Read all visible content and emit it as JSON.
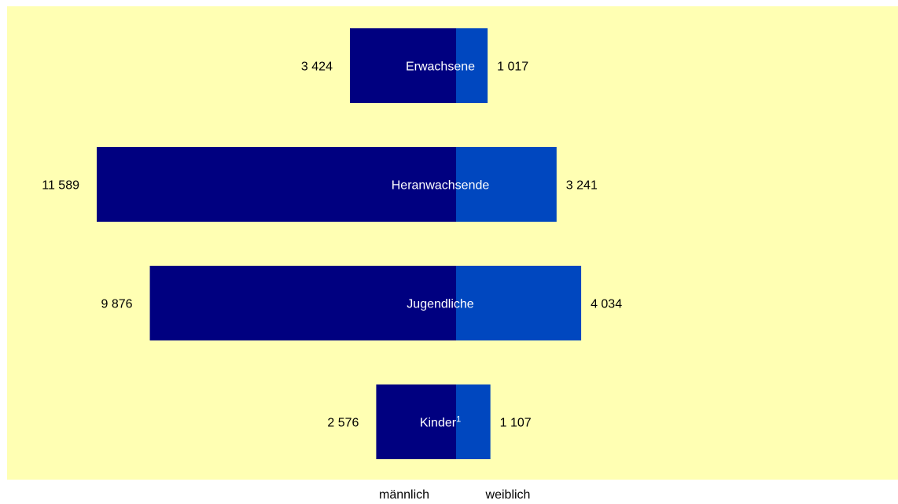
{
  "chart_data": {
    "type": "bar",
    "orientation": "horizontal",
    "layout": "population-pyramid",
    "categories": [
      "Erwachsene",
      "Heranwachsende",
      "Jugendliche",
      "Kinder"
    ],
    "category_footnotes": [
      "",
      "",
      "",
      "1"
    ],
    "series": [
      {
        "name": "männlich",
        "values": [
          3424,
          11589,
          9876,
          2576
        ],
        "labels": [
          "3 424",
          "11 589",
          "9 876",
          "2 576"
        ]
      },
      {
        "name": "weiblich",
        "values": [
          1017,
          3241,
          4034,
          1107
        ],
        "labels": [
          "1 017",
          "3 241",
          "4 034",
          "1 107"
        ]
      }
    ],
    "legend_position": "bottom",
    "grid": false,
    "axis_visible": false
  },
  "colors": {
    "background": "#ffffb3",
    "male": "#000080",
    "female": "#0047bf",
    "category_text": "#ffffff",
    "value_text": "#000000"
  }
}
